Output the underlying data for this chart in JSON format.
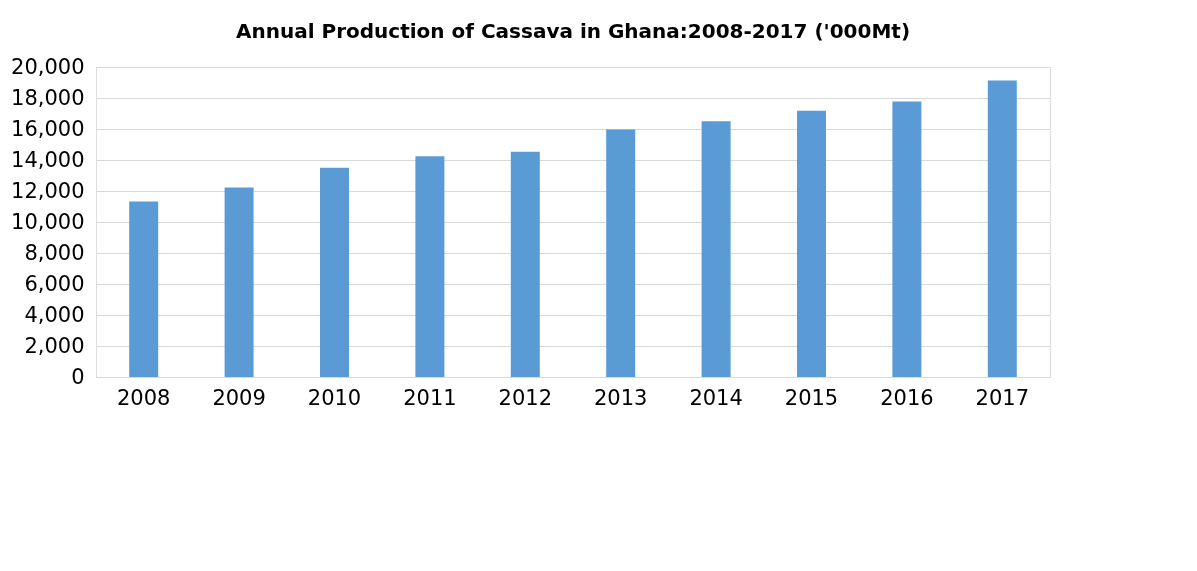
{
  "chart_data": {
    "type": "bar",
    "title": "Annual Production of Cassava in Ghana:2008-2017 ('000Mt)",
    "categories": [
      "2008",
      "2009",
      "2010",
      "2011",
      "2012",
      "2013",
      "2014",
      "2015",
      "2016",
      "2017"
    ],
    "values": [
      11330,
      12220,
      13500,
      14235,
      14540,
      15970,
      16500,
      17180,
      17770,
      19130
    ],
    "color": "#5b9bd5",
    "ylim": [
      0,
      20000
    ],
    "yticks": [
      {
        "value": 0,
        "label": "0"
      },
      {
        "value": 2000,
        "label": "2,000"
      },
      {
        "value": 4000,
        "label": "4,000"
      },
      {
        "value": 6000,
        "label": "6,000"
      },
      {
        "value": 8000,
        "label": "8,000"
      },
      {
        "value": 10000,
        "label": "10,000"
      },
      {
        "value": 12000,
        "label": "12,000"
      },
      {
        "value": 14000,
        "label": "14,000"
      },
      {
        "value": 16000,
        "label": "16,000"
      },
      {
        "value": 18000,
        "label": "18,000"
      },
      {
        "value": 20000,
        "label": "20,000"
      }
    ],
    "grid": "y"
  }
}
